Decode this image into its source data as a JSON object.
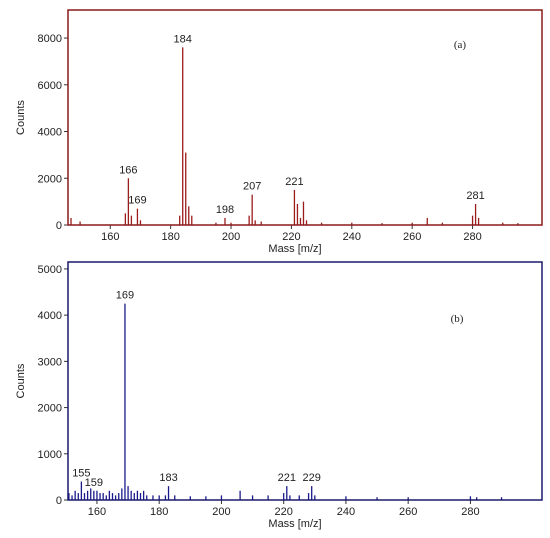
{
  "chart_data": [
    {
      "type": "bar",
      "annotation": "(a)",
      "xlabel": "Mass [m/z]",
      "ylabel": "Counts",
      "color": "#9b1b1b",
      "frame_color": "#8b1a1a",
      "xlim": [
        146,
        303
      ],
      "xticks": [
        160,
        180,
        200,
        220,
        240,
        260,
        280
      ],
      "ylim": [
        0,
        9200
      ],
      "yticks": [
        0,
        2000,
        4000,
        6000,
        8000
      ],
      "x": [
        147,
        150,
        165,
        166,
        167,
        169,
        170,
        183,
        184,
        185,
        186,
        187,
        195,
        198,
        200,
        206,
        207,
        208,
        210,
        221,
        222,
        223,
        224,
        225,
        230,
        240,
        250,
        260,
        265,
        270,
        280,
        281,
        282,
        290,
        295
      ],
      "values": [
        300,
        150,
        500,
        2000,
        400,
        700,
        200,
        400,
        7600,
        3100,
        800,
        400,
        100,
        300,
        100,
        400,
        1300,
        200,
        150,
        1500,
        900,
        300,
        1000,
        200,
        100,
        100,
        80,
        100,
        300,
        100,
        400,
        900,
        300,
        100,
        80
      ],
      "point_labels": [
        null,
        null,
        null,
        "166",
        null,
        "169",
        null,
        null,
        "184",
        null,
        null,
        null,
        null,
        "198",
        null,
        null,
        "207",
        null,
        null,
        "221",
        null,
        null,
        null,
        null,
        null,
        null,
        null,
        null,
        null,
        null,
        null,
        "281",
        null,
        null,
        null
      ]
    },
    {
      "type": "bar",
      "annotation": "(b)",
      "xlabel": "Mass [m/z]",
      "ylabel": "Counts",
      "color": "#1a1a8c",
      "frame_color": "#1a1a6e",
      "xlim": [
        150.7,
        303
      ],
      "xticks": [
        160,
        180,
        200,
        220,
        240,
        260,
        280
      ],
      "ylim": [
        0,
        5150
      ],
      "yticks": [
        0,
        1000,
        2000,
        3000,
        4000,
        5000
      ],
      "x": [
        151,
        152,
        153,
        154,
        155,
        156,
        157,
        158,
        159,
        160,
        161,
        162,
        163,
        164,
        165,
        166,
        167,
        168,
        169,
        170,
        171,
        172,
        173,
        174,
        175,
        176,
        178,
        180,
        182,
        183,
        185,
        190,
        195,
        200,
        206,
        210,
        215,
        220,
        221,
        222,
        225,
        228,
        229,
        230,
        240,
        250,
        260,
        280,
        282,
        290
      ],
      "values": [
        150,
        100,
        200,
        150,
        400,
        150,
        200,
        250,
        200,
        200,
        150,
        150,
        100,
        200,
        150,
        100,
        150,
        250,
        4250,
        300,
        200,
        150,
        200,
        150,
        200,
        100,
        100,
        100,
        100,
        300,
        100,
        80,
        80,
        100,
        200,
        100,
        100,
        150,
        300,
        100,
        100,
        150,
        300,
        100,
        80,
        60,
        60,
        80,
        60,
        60
      ],
      "point_labels": [
        null,
        null,
        null,
        null,
        "155",
        null,
        null,
        null,
        "159",
        null,
        null,
        null,
        null,
        null,
        null,
        null,
        null,
        null,
        "169",
        null,
        null,
        null,
        null,
        null,
        null,
        null,
        null,
        null,
        null,
        "183",
        null,
        null,
        null,
        null,
        null,
        null,
        null,
        null,
        "221",
        null,
        null,
        null,
        "229",
        null,
        null,
        null,
        null,
        null,
        null,
        null
      ]
    }
  ]
}
